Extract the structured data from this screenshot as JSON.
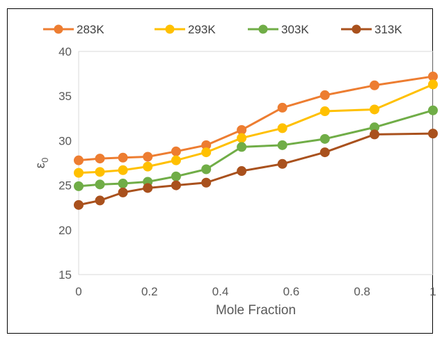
{
  "chart_data": {
    "type": "line",
    "title": "",
    "xlabel": "Mole Fraction",
    "ylabel": "ε",
    "ylabel_subscript": "0",
    "xlim": [
      0,
      1
    ],
    "ylim": [
      15,
      40
    ],
    "x_ticks": [
      0,
      0.2,
      0.4,
      0.6,
      0.8,
      1
    ],
    "x_tick_labels": [
      "0",
      "0.2",
      "0.4",
      "0.6",
      "0.8",
      "1"
    ],
    "y_ticks": [
      15,
      20,
      25,
      30,
      35,
      40
    ],
    "y_tick_labels": [
      "15",
      "20",
      "25",
      "30",
      "35",
      "40"
    ],
    "grid": false,
    "legend_position": "top",
    "x": [
      0,
      0.06,
      0.125,
      0.195,
      0.275,
      0.36,
      0.46,
      0.575,
      0.695,
      0.835,
      1
    ],
    "series": [
      {
        "name": "283K",
        "color": "#ED7D31",
        "values": [
          27.8,
          28.0,
          28.1,
          28.2,
          28.8,
          29.5,
          31.2,
          33.7,
          35.1,
          36.2,
          37.2
        ]
      },
      {
        "name": "293K",
        "color": "#FFC000",
        "values": [
          26.4,
          26.5,
          26.7,
          27.1,
          27.8,
          28.7,
          30.3,
          31.4,
          33.3,
          33.5,
          36.3
        ]
      },
      {
        "name": "303K",
        "color": "#70AD47",
        "values": [
          24.9,
          25.1,
          25.2,
          25.4,
          26.0,
          26.8,
          29.3,
          29.5,
          30.2,
          31.5,
          33.4
        ]
      },
      {
        "name": "313K",
        "color": "#A9511D",
        "values": [
          22.8,
          23.3,
          24.2,
          24.7,
          25.0,
          25.3,
          26.6,
          27.4,
          28.7,
          30.7,
          30.8
        ]
      }
    ]
  }
}
